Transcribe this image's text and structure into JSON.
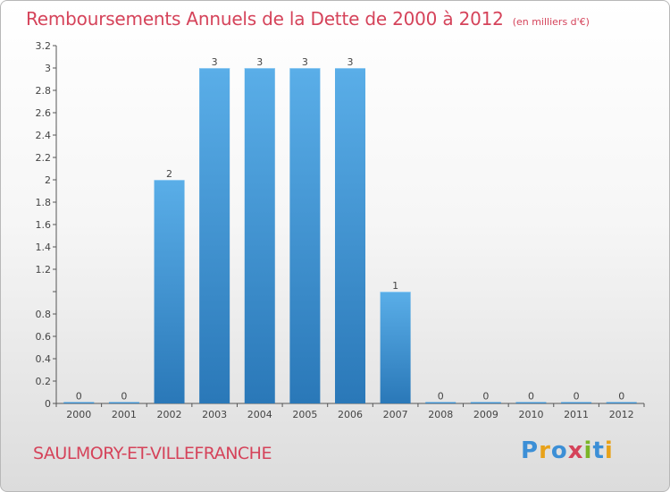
{
  "header": {
    "title": "Remboursements Annuels de la Dette de 2000 à 2012",
    "subtitle": "(en milliers d'€)"
  },
  "footer": {
    "commune": "SAULMORY-ET-VILLEFRANCHE",
    "brand_letters": [
      {
        "char": "P",
        "color": "#3c8fd6"
      },
      {
        "char": "r",
        "color": "#e8a21a"
      },
      {
        "char": "o",
        "color": "#3c8fd6"
      },
      {
        "char": "x",
        "color": "#d5435a"
      },
      {
        "char": "i",
        "color": "#7bb527"
      },
      {
        "char": "t",
        "color": "#3c8fd6"
      },
      {
        "char": "i",
        "color": "#e8a21a"
      }
    ]
  },
  "colors": {
    "bar_top": "#5aaee8",
    "bar_bottom": "#2a78b8",
    "title": "#d5435a"
  },
  "chart_data": {
    "type": "bar",
    "title": "Remboursements Annuels de la Dette de 2000 à 2012",
    "categories": [
      "2000",
      "2001",
      "2002",
      "2003",
      "2004",
      "2005",
      "2006",
      "2007",
      "2008",
      "2009",
      "2010",
      "2011",
      "2012"
    ],
    "values": [
      0,
      0,
      2,
      3,
      3,
      3,
      3,
      1,
      0,
      0,
      0,
      0,
      0
    ],
    "data_labels": [
      "0",
      "0",
      "2",
      "3",
      "3",
      "3",
      "3",
      "1",
      "0",
      "0",
      "0",
      "0",
      "0"
    ],
    "ylim": [
      0,
      3.2
    ],
    "yticks": [
      0,
      0.2,
      0.4,
      0.6,
      0.8,
      1,
      1.2,
      1.4,
      1.6,
      1.8,
      2,
      2.2,
      2.4,
      2.6,
      2.8,
      3,
      3.2
    ],
    "ytick_labels": [
      "0",
      "0.2",
      "0.4",
      "0.6",
      "0.8",
      "",
      "1.2",
      "1.4",
      "1.6",
      "1.8",
      "2",
      "2.2",
      "2.4",
      "2.6",
      "2.8",
      "3",
      "3.2"
    ],
    "xlabel": "",
    "ylabel": "",
    "grid": false,
    "legend": "none"
  }
}
